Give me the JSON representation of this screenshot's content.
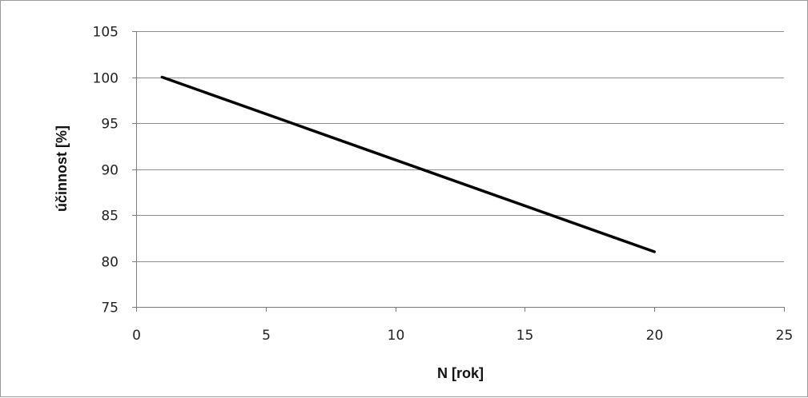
{
  "chart_data": {
    "type": "line",
    "title": "",
    "xlabel": "N [rok]",
    "ylabel": "účinnost [%]",
    "xlim": [
      0,
      25
    ],
    "ylim": [
      75,
      105
    ],
    "x_ticks": [
      0,
      5,
      10,
      15,
      20,
      25
    ],
    "y_ticks": [
      75,
      80,
      85,
      90,
      95,
      100,
      105
    ],
    "x_tick_labels": [
      "0",
      "5",
      "10",
      "15",
      "20",
      "25"
    ],
    "y_tick_labels": [
      "75",
      "80",
      "85",
      "90",
      "95",
      "100",
      "105"
    ],
    "grid": "horizontal",
    "legend": "none",
    "series": [
      {
        "x": [
          1,
          20
        ],
        "y": [
          100,
          81
        ]
      }
    ],
    "colors": {
      "line": "#000000",
      "grid": "#8c8c8c",
      "axis": "#7a7a7a",
      "frame": "#9a9a9a"
    }
  }
}
